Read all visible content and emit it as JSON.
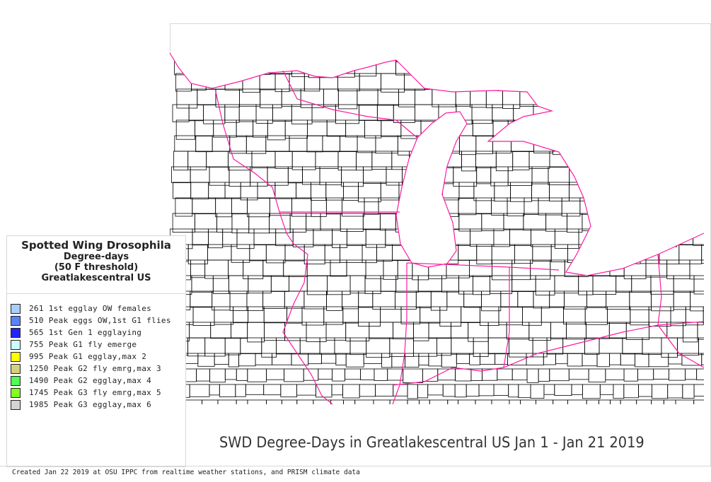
{
  "legend": {
    "title": "Spotted Wing Drosophila",
    "subtitle1": "Degree-days",
    "subtitle2": "(50 F threshold)",
    "subtitle3": "Greatlakescentral US",
    "items": [
      {
        "label": "261 1st egglay OW females",
        "color": "#a8cffa"
      },
      {
        "label": "510 Peak eggs OW,1st G1 flies",
        "color": "#5a82ff"
      },
      {
        "label": "565 1st Gen 1 egglaying",
        "color": "#2424ff"
      },
      {
        "label": "755 Peak G1 fly emerge",
        "color": "#ccffff"
      },
      {
        "label": "995 Peak G1 egglay,max 2",
        "color": "#ffff00"
      },
      {
        "label": "1250 Peak G2 fly emrg,max 3",
        "color": "#d4d080"
      },
      {
        "label": "1490 Peak G2 egglay,max 4",
        "color": "#50ff50"
      },
      {
        "label": "1745 Peak G3 fly emrg,max 5",
        "color": "#80ff20"
      },
      {
        "label": "1985 Peak G3 egglay,max 6",
        "color": "#d4d4d4"
      }
    ]
  },
  "map_title": "SWD Degree-Days in Greatlakescentral US Jan 1 - Jan 21 2019",
  "footer": "Created Jan 22 2019 at OSU IPPC from  realtime weather stations, and PRISM climate data",
  "colors": {
    "state_border": "#ff1aa0",
    "county_border": "#000000"
  }
}
